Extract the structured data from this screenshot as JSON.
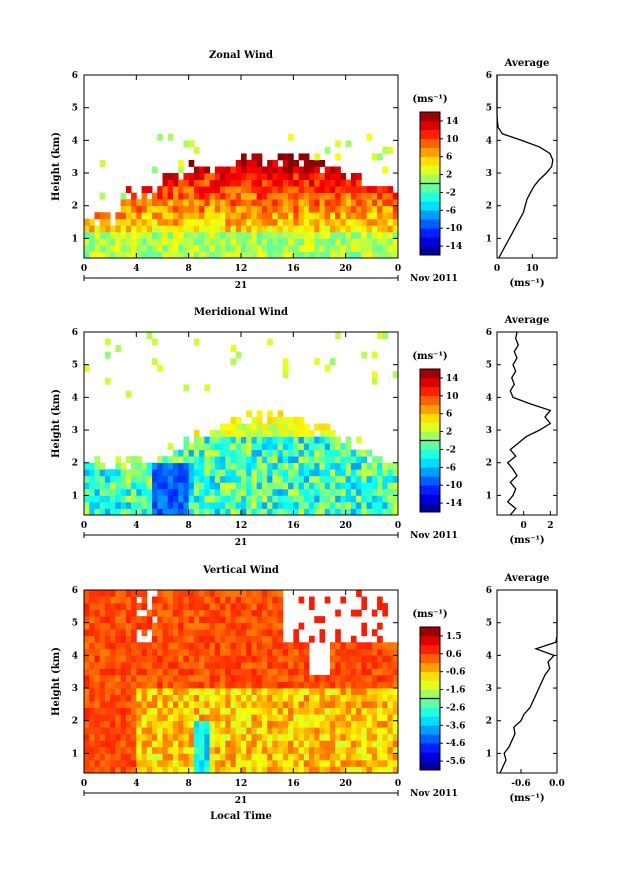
{
  "chart_data": [
    {
      "type": "heatmap",
      "title": "Zonal Wind",
      "ylabel": "Height (km)",
      "xlabel": "",
      "date_label": "21",
      "month_label": "Nov 2011",
      "x_ticks": [
        "0",
        "4",
        "8",
        "12",
        "16",
        "20",
        "0"
      ],
      "y_ticks": [
        "1",
        "2",
        "3",
        "4",
        "5",
        "6"
      ],
      "xlim": [
        0,
        24
      ],
      "ylim": [
        0.4,
        6.0
      ],
      "colorbar": {
        "unit": "(ms⁻¹)",
        "ticks": [
          "14",
          "10",
          "6",
          "2",
          "-2",
          "-6",
          "-10",
          "-14"
        ],
        "range": [
          -16,
          16
        ]
      },
      "profile": {
        "title": "Average",
        "xlabel": "(ms⁻¹)",
        "x_ticks": [
          "0",
          "10"
        ],
        "xlim": [
          0,
          17
        ],
        "y_ticks": [
          "1",
          "2",
          "3",
          "4",
          "5",
          "6"
        ],
        "heights": [
          0.4,
          0.6,
          0.8,
          1.0,
          1.2,
          1.4,
          1.6,
          1.8,
          2.0,
          2.2,
          2.4,
          2.6,
          2.8,
          3.0,
          3.2,
          3.4,
          3.6,
          3.8,
          4.0,
          4.2,
          4.4,
          4.6,
          4.8,
          5.0,
          5.2,
          5.4,
          5.6,
          5.8,
          6.0
        ],
        "values": [
          0.5,
          1.5,
          2.5,
          3.5,
          4.5,
          5.5,
          6.5,
          7.5,
          8.0,
          8.5,
          9.5,
          10.5,
          12.0,
          14.0,
          15.5,
          15.8,
          15.0,
          12.0,
          7.0,
          1.5,
          0.3,
          0.1,
          0.0,
          0.0,
          0.0,
          0.0,
          0.0,
          0.0,
          0.0
        ]
      }
    },
    {
      "type": "heatmap",
      "title": "Meridional Wind",
      "ylabel": "Height (km)",
      "xlabel": "",
      "date_label": "21",
      "month_label": "Nov 2011",
      "x_ticks": [
        "0",
        "4",
        "8",
        "12",
        "16",
        "20",
        "0"
      ],
      "y_ticks": [
        "1",
        "2",
        "3",
        "4",
        "5",
        "6"
      ],
      "xlim": [
        0,
        24
      ],
      "ylim": [
        0.4,
        6.0
      ],
      "colorbar": {
        "unit": "(ms⁻¹)",
        "ticks": [
          "14",
          "10",
          "6",
          "2",
          "-2",
          "-6",
          "-10",
          "-14"
        ],
        "range": [
          -16,
          16
        ]
      },
      "profile": {
        "title": "Average",
        "xlabel": "(ms⁻¹)",
        "x_ticks": [
          "0",
          "2"
        ],
        "xlim": [
          -2.0,
          2.5
        ],
        "y_ticks": [
          "1",
          "2",
          "3",
          "4",
          "5",
          "6"
        ],
        "heights": [
          0.4,
          0.6,
          0.8,
          1.0,
          1.2,
          1.4,
          1.6,
          1.8,
          2.0,
          2.2,
          2.4,
          2.6,
          2.8,
          3.0,
          3.2,
          3.4,
          3.6,
          3.8,
          4.0,
          4.2,
          4.4,
          4.6,
          4.8,
          5.0,
          5.2,
          5.4,
          5.6,
          5.8,
          6.0
        ],
        "values": [
          -1.0,
          -0.6,
          -1.2,
          -0.8,
          -0.6,
          -1.0,
          -0.5,
          -0.8,
          -1.2,
          -0.6,
          -1.0,
          -0.4,
          0.2,
          1.2,
          2.0,
          1.6,
          2.0,
          0.5,
          -0.8,
          -1.0,
          -0.7,
          -0.9,
          -0.6,
          -0.8,
          -0.5,
          -0.7,
          -0.4,
          -0.6,
          -0.5
        ]
      }
    },
    {
      "type": "heatmap",
      "title": "Vertical Wind",
      "ylabel": "Height (km)",
      "xlabel": "Local Time",
      "date_label": "21",
      "month_label": "Nov 2011",
      "x_ticks": [
        "0",
        "4",
        "8",
        "12",
        "16",
        "20",
        "0"
      ],
      "y_ticks": [
        "1",
        "2",
        "3",
        "4",
        "5",
        "6"
      ],
      "xlim": [
        0,
        24
      ],
      "ylim": [
        0.4,
        6.0
      ],
      "colorbar": {
        "unit": "(ms⁻¹)",
        "ticks": [
          "1.5",
          "0.6",
          "-0.6",
          "-1.6",
          "-2.6",
          "-3.6",
          "-4.6",
          "-5.6"
        ],
        "range": [
          -6.0,
          2.0
        ]
      },
      "profile": {
        "title": "Average",
        "xlabel": "(ms⁻¹)",
        "x_ticks": [
          "-0.6",
          "0.0"
        ],
        "xlim": [
          -1.0,
          0.0
        ],
        "y_ticks": [
          "1",
          "2",
          "3",
          "4",
          "5",
          "6"
        ],
        "heights": [
          0.4,
          0.6,
          0.8,
          1.0,
          1.2,
          1.4,
          1.6,
          1.8,
          2.0,
          2.2,
          2.4,
          2.6,
          2.8,
          3.0,
          3.2,
          3.4,
          3.6,
          3.8,
          4.0,
          4.2,
          4.4,
          4.6,
          4.8,
          5.0,
          5.2,
          5.4,
          5.6,
          5.8,
          6.0
        ],
        "values": [
          -0.95,
          -0.9,
          -0.85,
          -0.88,
          -0.8,
          -0.75,
          -0.7,
          -0.72,
          -0.6,
          -0.55,
          -0.45,
          -0.4,
          -0.35,
          -0.3,
          -0.25,
          -0.2,
          -0.12,
          -0.15,
          -0.05,
          -0.35,
          -0.02,
          0.0,
          0.0,
          0.0,
          0.0,
          0.0,
          0.0,
          0.0,
          0.0
        ]
      }
    }
  ]
}
